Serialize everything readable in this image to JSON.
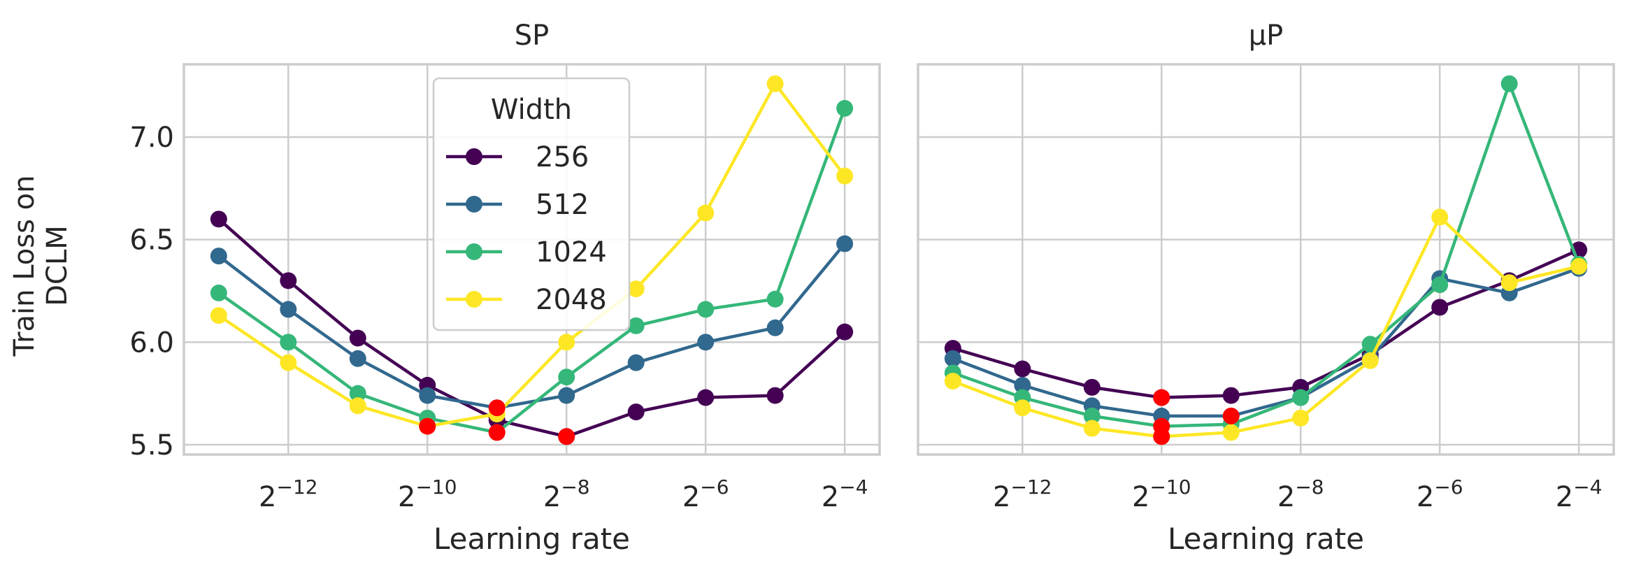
{
  "y_axis_label_lines": [
    "Train Loss on",
    "DCLM"
  ],
  "x_tick_exponents": [
    "-12",
    "-10",
    "-8",
    "-6",
    "-4"
  ],
  "chart_data": [
    {
      "type": "line",
      "title": "SP",
      "xlabel": "Learning rate",
      "ylabel": "Train Loss on DCLM",
      "x_scale": "log2",
      "x": [
        -13,
        -12,
        -11,
        -10,
        -9,
        -8,
        -7,
        -6,
        -5,
        -4
      ],
      "x_ticks": [
        -12,
        -10,
        -8,
        -6,
        -4
      ],
      "y_ticks": [
        5.5,
        6.0,
        6.5,
        7.0
      ],
      "ylim": [
        5.45,
        7.35
      ],
      "grid": true,
      "legend": {
        "title": "Width",
        "position": "upper-center"
      },
      "series": [
        {
          "name": "256",
          "color": "#440154",
          "values": [
            6.6,
            6.3,
            6.02,
            5.79,
            5.62,
            5.54,
            5.66,
            5.73,
            5.74,
            6.05
          ]
        },
        {
          "name": "512",
          "color": "#31688e",
          "values": [
            6.42,
            6.16,
            5.92,
            5.74,
            5.68,
            5.74,
            5.9,
            6.0,
            6.07,
            6.48
          ]
        },
        {
          "name": "1024",
          "color": "#35b779",
          "values": [
            6.24,
            6.0,
            5.75,
            5.63,
            5.56,
            5.83,
            6.08,
            6.16,
            6.21,
            7.14
          ]
        },
        {
          "name": "2048",
          "color": "#fde725",
          "values": [
            6.13,
            5.9,
            5.69,
            5.59,
            5.65,
            6.0,
            6.26,
            6.63,
            7.26,
            6.81
          ]
        }
      ],
      "optimum_marker_color": "#ff0000",
      "optima": [
        {
          "series": "256",
          "x": -8
        },
        {
          "series": "512",
          "x": -9
        },
        {
          "series": "1024",
          "x": -9
        },
        {
          "series": "2048",
          "x": -10
        }
      ]
    },
    {
      "type": "line",
      "title": "μP",
      "xlabel": "Learning rate",
      "x_scale": "log2",
      "x": [
        -13,
        -12,
        -11,
        -10,
        -9,
        -8,
        -7,
        -6,
        -5,
        -4
      ],
      "x_ticks": [
        -12,
        -10,
        -8,
        -6,
        -4
      ],
      "y_ticks": [
        5.5,
        6.0,
        6.5,
        7.0
      ],
      "ylim": [
        5.45,
        7.35
      ],
      "grid": true,
      "series": [
        {
          "name": "256",
          "color": "#440154",
          "values": [
            5.97,
            5.87,
            5.78,
            5.73,
            5.74,
            5.78,
            5.94,
            6.17,
            6.3,
            6.45
          ]
        },
        {
          "name": "512",
          "color": "#31688e",
          "values": [
            5.92,
            5.79,
            5.69,
            5.64,
            5.64,
            5.73,
            5.92,
            6.31,
            6.24,
            6.36
          ]
        },
        {
          "name": "1024",
          "color": "#35b779",
          "values": [
            5.85,
            5.73,
            5.64,
            5.59,
            5.6,
            5.73,
            5.99,
            6.28,
            7.26,
            6.38
          ]
        },
        {
          "name": "2048",
          "color": "#fde725",
          "values": [
            5.81,
            5.68,
            5.58,
            5.54,
            5.56,
            5.63,
            5.91,
            6.61,
            6.29,
            6.37
          ]
        }
      ],
      "optimum_marker_color": "#ff0000",
      "optima": [
        {
          "series": "256",
          "x": -10
        },
        {
          "series": "512",
          "x": -9
        },
        {
          "series": "1024",
          "x": -10
        },
        {
          "series": "2048",
          "x": -10
        }
      ]
    }
  ]
}
